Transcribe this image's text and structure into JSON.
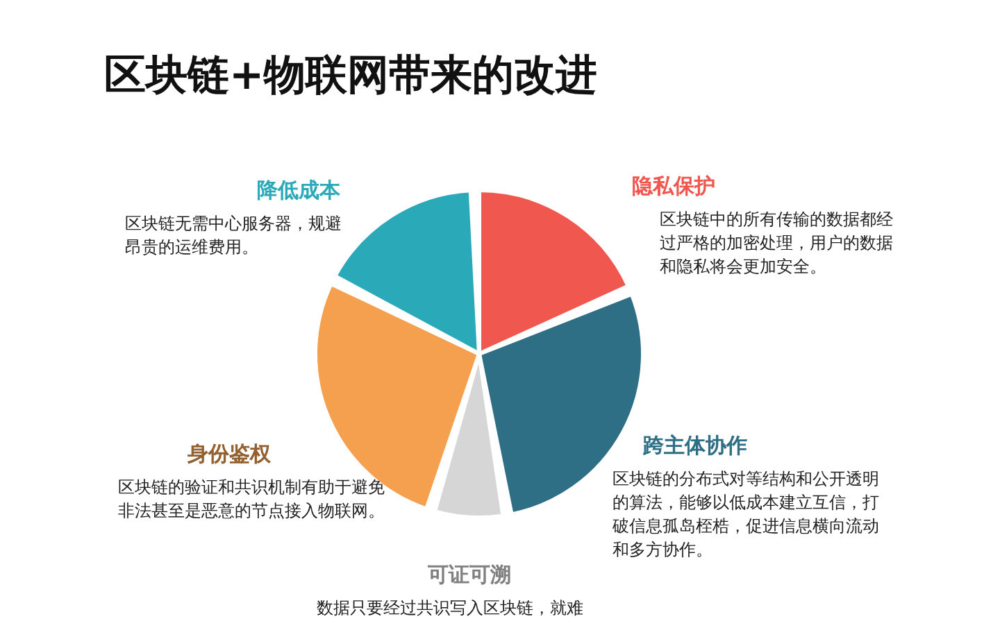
{
  "chart_data": {
    "type": "pie",
    "title": "区块链+物联网带来的改进",
    "categories": [
      "隐私保护",
      "跨主体协作",
      "可证可溯",
      "身份鉴权",
      "降低成本"
    ],
    "values": [
      19,
      29,
      7,
      28,
      17
    ],
    "colors": [
      "#f0574f",
      "#2f6f86",
      "#d6d6d6",
      "#f5a04e",
      "#2aaab9"
    ],
    "annotations": [
      "区块链中的所有传输的数据都经过严格的加密处理，用户的数据和隐私将会更加安全。",
      "区块链的分布式对等结构和公开透明的算法，能够以低成本建立互信，打破信息孤岛桎梏，促进信息横向流动和多方协作。",
      "数据只要经过共识写入区块链，就难",
      "区块链的验证和共识机制有助于避免非法甚至是恶意的节点接入物联网。",
      "区块链无需中心服务器，规避昂贵的运维费用。"
    ],
    "legend": false
  }
}
